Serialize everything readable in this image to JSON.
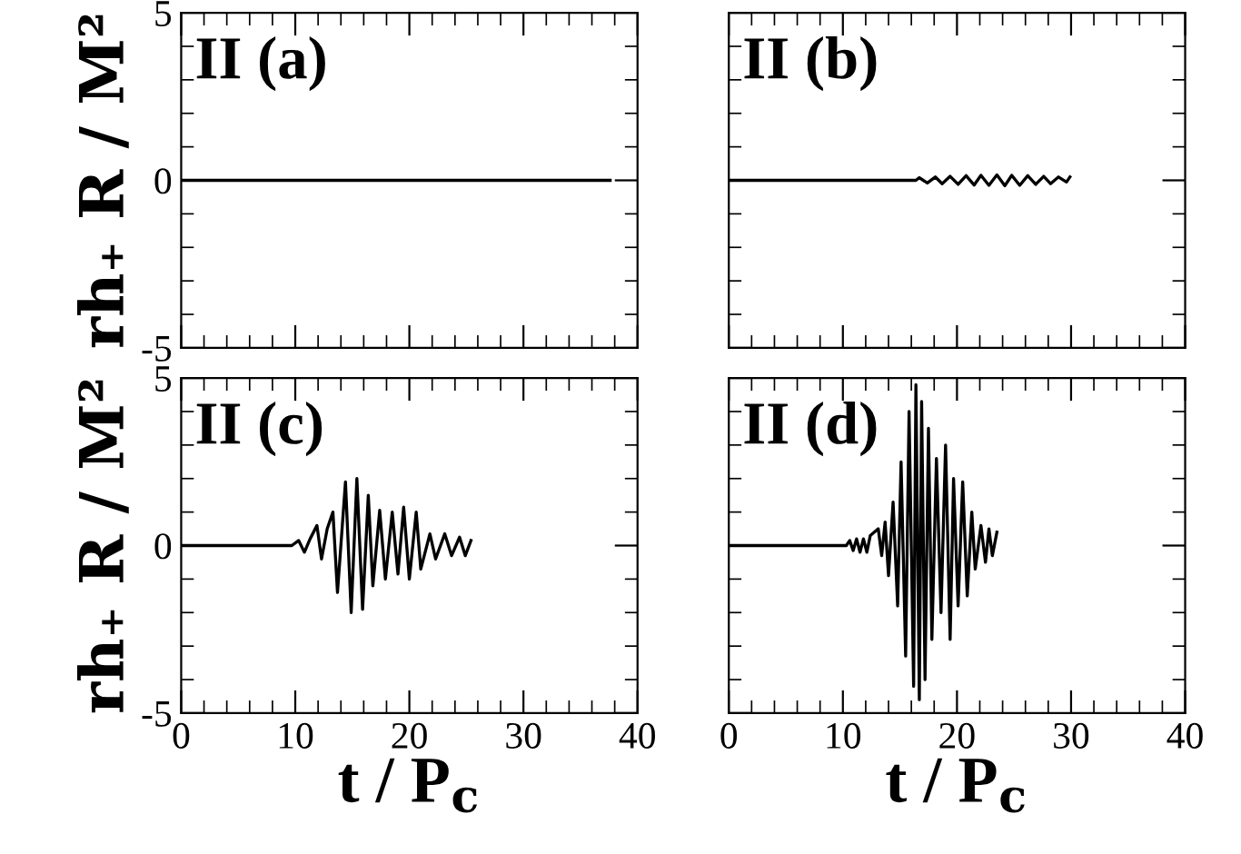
{
  "chart_data": [
    {
      "type": "line",
      "xlim": [
        0,
        40
      ],
      "ylim": [
        -5,
        5
      ],
      "xticks": [
        0,
        10,
        20,
        30,
        40
      ],
      "yticks": [
        -5,
        0,
        5
      ],
      "tick_labels": "y",
      "ylabel": "rh₊ R / M²",
      "annotations": [
        "II (a)"
      ],
      "series": [
        {
          "color": "#000000",
          "x": [
            0,
            10,
            20,
            30,
            37.6
          ],
          "values": [
            0,
            0,
            0,
            0,
            0
          ]
        }
      ]
    },
    {
      "type": "line",
      "xlim": [
        0,
        40
      ],
      "ylim": [
        -5,
        5
      ],
      "xticks": [
        0,
        10,
        20,
        30,
        40
      ],
      "yticks": [
        -5,
        0,
        5
      ],
      "tick_labels": false,
      "annotations": [
        "II (b)"
      ],
      "series": [
        {
          "color": "#000000",
          "x": [
            0,
            16.4,
            16.7,
            17.4,
            18.1,
            18.7,
            19.4,
            20.1,
            20.8,
            21.5,
            22.1,
            22.8,
            23.5,
            24.2,
            24.8,
            25.5,
            26.2,
            26.9,
            27.6,
            28.2,
            28.9,
            29.6,
            29.9
          ],
          "values": [
            0,
            0,
            0.08,
            -0.08,
            0.1,
            -0.1,
            0.12,
            -0.12,
            0.14,
            -0.14,
            0.15,
            -0.15,
            0.16,
            -0.16,
            0.15,
            -0.15,
            0.14,
            -0.12,
            0.12,
            -0.1,
            0.1,
            -0.05,
            0.1
          ]
        }
      ]
    },
    {
      "type": "line",
      "xlim": [
        0,
        40
      ],
      "ylim": [
        -5,
        5
      ],
      "xticks": [
        0,
        10,
        20,
        30,
        40
      ],
      "yticks": [
        -5,
        0,
        5
      ],
      "xlabel": "t / P$_{c}$",
      "ylabel": "rh₊ R / M²",
      "annotations": [
        "II (c)"
      ],
      "series": [
        {
          "color": "#000000",
          "x": [
            0,
            9.7,
            10.3,
            10.8,
            11.3,
            11.9,
            12.3,
            12.8,
            13.3,
            13.7,
            14.4,
            14.9,
            15.4,
            15.9,
            16.4,
            16.8,
            17.4,
            17.9,
            18.5,
            19.0,
            19.5,
            20.0,
            20.6,
            21.0,
            21.8,
            22.3,
            23.1,
            23.7,
            24.4,
            24.9,
            25.4
          ],
          "values": [
            0,
            0,
            0.15,
            -0.2,
            0.2,
            0.6,
            -0.4,
            0.5,
            1.0,
            -1.4,
            1.9,
            -2.0,
            2.0,
            -1.9,
            1.5,
            -1.2,
            1.05,
            -1.0,
            1.0,
            -0.85,
            1.15,
            -1.0,
            1.0,
            -0.7,
            0.35,
            -0.4,
            0.35,
            -0.3,
            0.25,
            -0.3,
            0.15
          ]
        }
      ]
    },
    {
      "type": "line",
      "xlim": [
        0,
        40
      ],
      "ylim": [
        -5,
        5
      ],
      "xticks": [
        0,
        10,
        20,
        30,
        40
      ],
      "yticks": [
        -5,
        0,
        5
      ],
      "tick_labels": "x",
      "xlabel": "t / P$_{c}$",
      "annotations": [
        "II (d)"
      ],
      "series": [
        {
          "color": "#000000",
          "x": [
            0,
            10.3,
            10.6,
            10.9,
            11.2,
            11.5,
            11.8,
            12.1,
            12.4,
            13.1,
            13.4,
            13.7,
            14.0,
            14.4,
            14.8,
            15.1,
            15.5,
            15.8,
            16.2,
            16.4,
            16.7,
            16.9,
            17.2,
            17.5,
            17.8,
            18.2,
            18.6,
            19.0,
            19.4,
            19.7,
            20.1,
            20.5,
            20.9,
            21.3,
            21.6,
            22.1,
            22.5,
            22.8,
            23.1,
            23.5
          ],
          "values": [
            0,
            0,
            0.15,
            -0.15,
            0.2,
            -0.2,
            0.2,
            -0.2,
            0.3,
            0.5,
            -0.3,
            0.7,
            -0.9,
            1.3,
            -1.8,
            2.5,
            -3.3,
            4.0,
            -4.2,
            4.8,
            -4.6,
            4.3,
            -4.0,
            3.5,
            -2.8,
            2.6,
            -2.0,
            3.0,
            -2.8,
            2.0,
            -1.8,
            1.9,
            -1.5,
            1.0,
            -0.7,
            0.6,
            -0.5,
            0.5,
            -0.3,
            0.4
          ]
        }
      ]
    }
  ]
}
